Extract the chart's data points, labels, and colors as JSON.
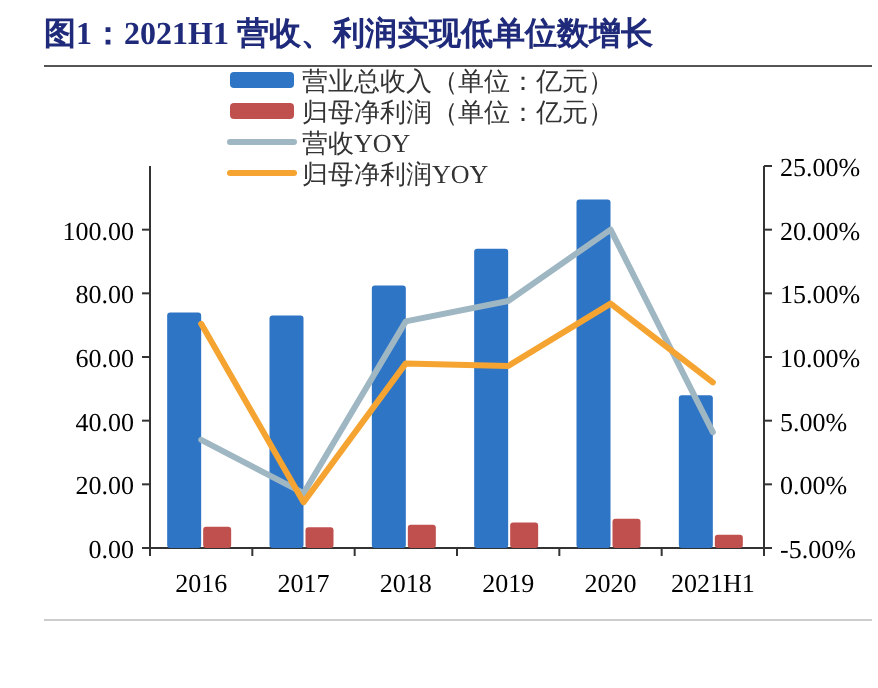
{
  "chart_data": {
    "type": "bar",
    "title": "图1：2021H1 营收、利润实现低单位数增长",
    "categories": [
      "2016",
      "2017",
      "2018",
      "2019",
      "2020",
      "2021H1"
    ],
    "series": [
      {
        "name": "营业总收入（单位：亿元）",
        "color": "#2e75c6",
        "values": [
          74,
          73,
          82.5,
          94,
          109.5,
          48
        ]
      },
      {
        "name": "归母净利润（单位：亿元）",
        "color": "#c0504d",
        "values": [
          6.7,
          6.5,
          7.3,
          8,
          9.2,
          4.2
        ]
      },
      {
        "name": "营收YOY",
        "type": "line",
        "axis": "y2",
        "color": "#9fb6c3",
        "values": [
          3.5,
          -0.7,
          12.8,
          14.4,
          20,
          4.1
        ]
      },
      {
        "name": "归母净利润YOY",
        "type": "line",
        "axis": "y2",
        "color": "#f5a431",
        "values": [
          12.6,
          -1.4,
          9.5,
          9.3,
          14.2,
          8
        ]
      }
    ],
    "ylim": [
      0,
      120
    ],
    "yticks": [
      {
        "value": 0,
        "label": "0.00"
      },
      {
        "value": 20,
        "label": "20.00"
      },
      {
        "value": 40,
        "label": "40.00"
      },
      {
        "value": 60,
        "label": "60.00"
      },
      {
        "value": 80,
        "label": "80.00"
      },
      {
        "value": 100,
        "label": "100.00"
      }
    ],
    "y2lim": [
      -5,
      25
    ],
    "y2ticks": [
      {
        "value": -5,
        "label": "-5.00%"
      },
      {
        "value": 0,
        "label": "0.00%"
      },
      {
        "value": 5,
        "label": "5.00%"
      },
      {
        "value": 10,
        "label": "10.00%"
      },
      {
        "value": 15,
        "label": "15.00%"
      },
      {
        "value": 20,
        "label": "20.00%"
      },
      {
        "value": 25,
        "label": "25.00%"
      }
    ],
    "legend": "top",
    "grid": false
  }
}
